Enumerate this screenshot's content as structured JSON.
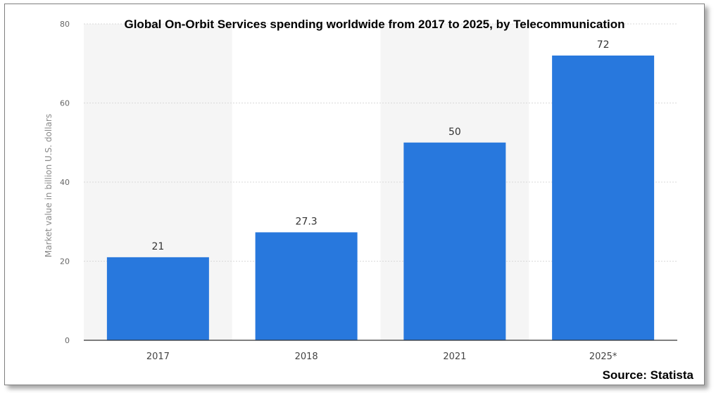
{
  "chart_data": {
    "type": "bar",
    "title": "Global On-Orbit Services spending worldwide from 2017 to 2025, by Telecommunication",
    "ylabel": "Market value in billion U.S. dollars",
    "xlabel": "",
    "categories": [
      "2017",
      "2018",
      "2021",
      "2025*"
    ],
    "values": [
      21,
      27.3,
      50,
      72
    ],
    "value_labels": [
      "21",
      "27.3",
      "50",
      "72"
    ],
    "ylim": [
      0,
      80
    ],
    "yticks": [
      0,
      20,
      40,
      60,
      80
    ],
    "grid": true,
    "legend": "none",
    "source": "Source: Statista",
    "colors": {
      "bar": "#2878dd",
      "band": "#f5f5f5",
      "grid": "#d9d9d9",
      "axis": "#333333"
    }
  }
}
